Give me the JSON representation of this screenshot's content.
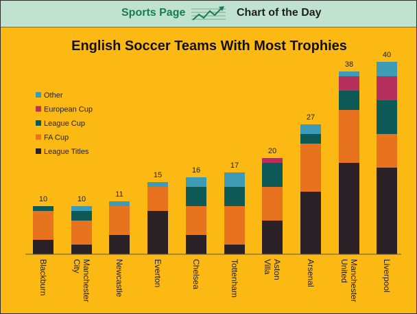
{
  "header": {
    "brand": "Sports Page",
    "subtitle": "Chart of the Day",
    "logo_icon": "trend-chart-icon"
  },
  "chart_data": {
    "type": "bar",
    "stacked": true,
    "title": "English Soccer Teams With Most Trophies",
    "xlabel": "",
    "ylabel": "",
    "categories": [
      "Blackburn",
      "Manchester City",
      "Newcastle",
      "Everton",
      "Chelsea",
      "Tottenham",
      "Aston Villa",
      "Arsenal",
      "Manchester United",
      "Liverpool"
    ],
    "totals": [
      10,
      10,
      11,
      15,
      16,
      17,
      20,
      27,
      38,
      40
    ],
    "series": [
      {
        "name": "League Titles",
        "color": "#2A2226",
        "values": [
          3,
          2,
          4,
          9,
          4,
          2,
          7,
          13,
          19,
          18
        ]
      },
      {
        "name": "FA Cup",
        "color": "#E8731F",
        "values": [
          6,
          5,
          6,
          5,
          6,
          8,
          7,
          10,
          11,
          7
        ]
      },
      {
        "name": "League Cup",
        "color": "#0C5955",
        "values": [
          1,
          2,
          0,
          0,
          4,
          4,
          5,
          2,
          4,
          7
        ]
      },
      {
        "name": "European Cup",
        "color": "#B5305A",
        "values": [
          0,
          0,
          0,
          0,
          0,
          0,
          1,
          0,
          3,
          5
        ]
      },
      {
        "name": "Other",
        "color": "#3E9BB5",
        "values": [
          0,
          1,
          1,
          1,
          2,
          3,
          0,
          2,
          1,
          3
        ]
      }
    ],
    "legend_position": "left",
    "grid": false
  }
}
